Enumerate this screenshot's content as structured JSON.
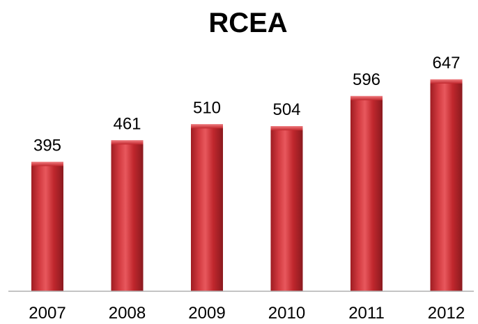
{
  "chart_data": {
    "type": "bar",
    "title": "RCEA",
    "categories": [
      "2007",
      "2008",
      "2009",
      "2010",
      "2011",
      "2012"
    ],
    "values": [
      395,
      461,
      510,
      504,
      596,
      647
    ],
    "data_labels": [
      "395",
      "461",
      "510",
      "504",
      "596",
      "647"
    ],
    "ylim": [
      0,
      700
    ],
    "grid": false,
    "legend": "none",
    "bar_color": "#c0272d",
    "bar_highlight": "#e8585d",
    "bar_shadow": "#8a1a1f"
  }
}
